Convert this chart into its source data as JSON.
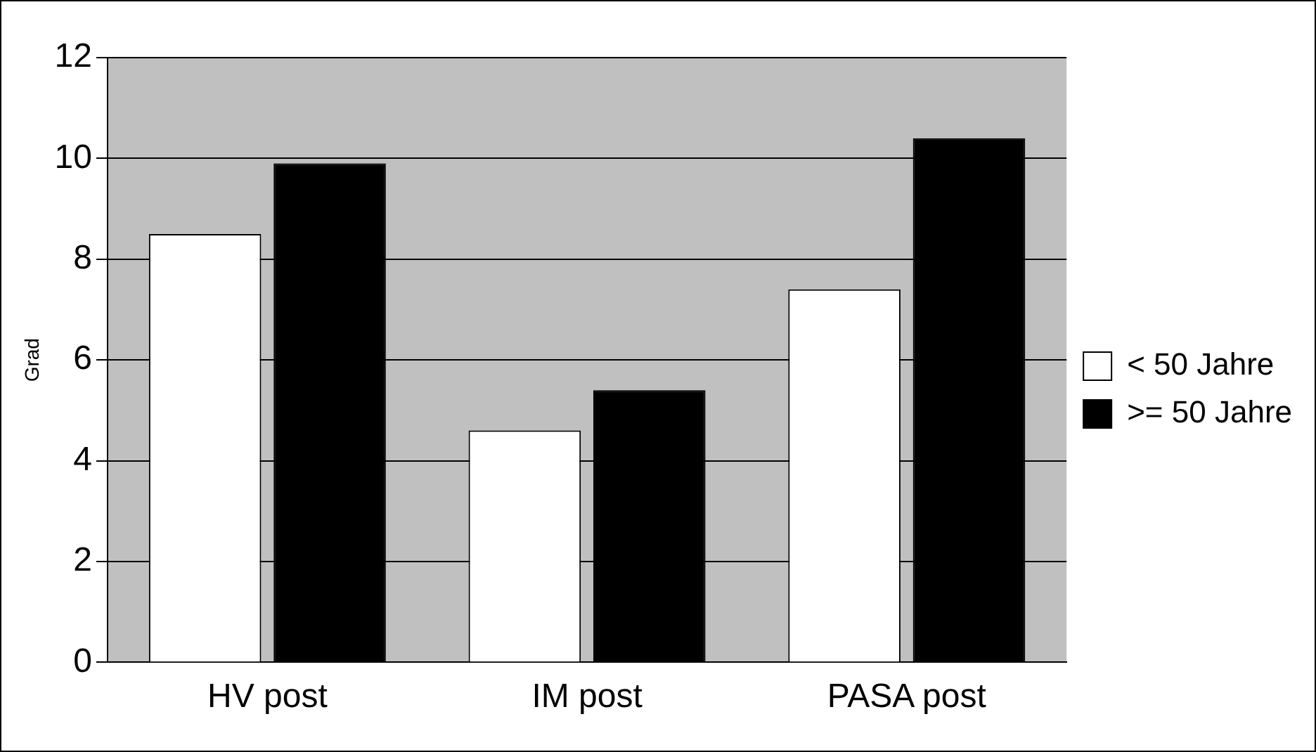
{
  "chart_data": {
    "type": "bar",
    "ylabel": "Grad",
    "categories": [
      "HV post",
      "IM post",
      "PASA post"
    ],
    "series": [
      {
        "name": "< 50 Jahre",
        "color": "#ffffff",
        "values": [
          8.5,
          4.6,
          7.4
        ]
      },
      {
        "name": ">= 50 Jahre",
        "color": "#000000",
        "values": [
          9.9,
          5.4,
          10.4
        ]
      }
    ],
    "ylim": [
      0,
      12
    ],
    "yticks": [
      0,
      2,
      4,
      6,
      8,
      10,
      12
    ],
    "grid": "y",
    "legend": "right"
  }
}
